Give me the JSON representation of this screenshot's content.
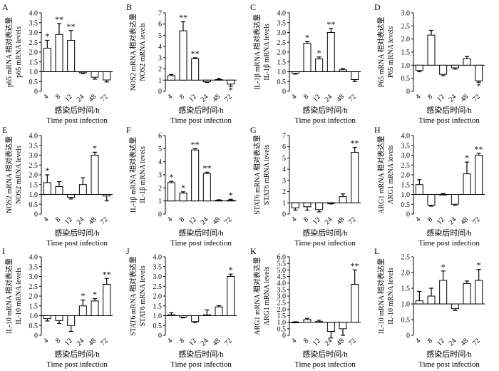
{
  "figure": {
    "xlabel_cn": "感染后时间/h",
    "xlabel_en": "Time post infection"
  },
  "chart_data": [
    {
      "panel": "A",
      "type": "bar",
      "categories": [
        "4",
        "8",
        "12",
        "24",
        "48",
        "72"
      ],
      "values": [
        2.2,
        2.9,
        2.6,
        0.95,
        0.72,
        0.58
      ],
      "errors": [
        0.4,
        0.55,
        0.5,
        0.05,
        0.1,
        0.1
      ],
      "sig": [
        "*",
        "**",
        "**",
        "",
        "",
        ""
      ],
      "ylim": [
        0,
        4.0
      ],
      "yticks": [
        "0",
        "0.5",
        "1.0",
        "1.5",
        "2.0",
        "2.5",
        "3.0",
        "3.5",
        "4.0"
      ],
      "ylabel_cn": "p65 mRNA 相对表达量",
      "ylabel_en": "p65 mRNA levels"
    },
    {
      "panel": "B",
      "type": "bar",
      "categories": [
        "4",
        "8",
        "12",
        "24",
        "48",
        "72"
      ],
      "values": [
        1.4,
        5.4,
        2.9,
        0.85,
        1.05,
        0.65
      ],
      "errors": [
        0.1,
        0.8,
        0.1,
        0.05,
        0.1,
        0.2
      ],
      "sig": [
        "",
        "**",
        "**",
        "",
        "",
        "*"
      ],
      "ylim": [
        0,
        7
      ],
      "yticks": [
        "0",
        "1",
        "2",
        "3",
        "4",
        "5",
        "6",
        "7"
      ],
      "ylabel_cn": "NOS2 mRNA 相对表达量",
      "ylabel_en": "NOS2 mRNA levels"
    },
    {
      "panel": "C",
      "type": "bar",
      "categories": [
        "4",
        "8",
        "12",
        "24",
        "48",
        "72"
      ],
      "values": [
        0.92,
        2.45,
        1.65,
        3.0,
        1.1,
        0.6
      ],
      "errors": [
        0.04,
        0.08,
        0.1,
        0.2,
        0.06,
        0.1
      ],
      "sig": [
        "",
        "*",
        "*",
        "**",
        "",
        ""
      ],
      "ylim": [
        0,
        4.0
      ],
      "yticks": [
        "0",
        "0.5",
        "1.0",
        "1.5",
        "2.0",
        "2.5",
        "3.0",
        "3.5",
        "4.0"
      ],
      "ylabel_cn": "IL-1β mRNA 相对表达量",
      "ylabel_en": "IL-1β mRNA levels"
    },
    {
      "panel": "D",
      "type": "bar",
      "categories": [
        "4",
        "8",
        "12",
        "24",
        "48",
        "72"
      ],
      "values": [
        0.8,
        2.15,
        0.65,
        0.9,
        1.25,
        0.4
      ],
      "errors": [
        0.05,
        0.18,
        0.05,
        0.05,
        0.08,
        0.05
      ],
      "sig": [
        "",
        "",
        "",
        "",
        "",
        "*"
      ],
      "ylim": [
        0,
        3.0
      ],
      "yticks": [
        "0",
        "0.5",
        "1.0",
        "1.5",
        "2.0",
        "2.5",
        "3.0"
      ],
      "ylabel_cn": "P65 mRNA 相对表达量",
      "ylabel_en": "P65 mRNA levels"
    },
    {
      "panel": "E",
      "type": "bar",
      "categories": [
        "4",
        "8",
        "12",
        "24",
        "48",
        "72"
      ],
      "values": [
        1.6,
        1.4,
        0.85,
        1.5,
        3.0,
        0.92
      ],
      "errors": [
        0.4,
        0.25,
        0.08,
        0.35,
        0.15,
        0.25
      ],
      "sig": [
        "*",
        "",
        "",
        "",
        "*",
        ""
      ],
      "ylim": [
        0,
        4.0
      ],
      "yticks": [
        "0",
        "0.5",
        "1.0",
        "1.5",
        "2.0",
        "2.5",
        "3.0",
        "3.5",
        "4.0"
      ],
      "ylabel_cn": "NOS2 mRNA 相对表达量",
      "ylabel_en": "NOS2 mRNA levels"
    },
    {
      "panel": "F",
      "type": "bar",
      "categories": [
        "4",
        "8",
        "12",
        "24",
        "48",
        "72"
      ],
      "values": [
        2.4,
        1.6,
        4.9,
        3.1,
        1.05,
        1.05
      ],
      "errors": [
        0.1,
        0.1,
        0.1,
        0.1,
        0.04,
        0.08
      ],
      "sig": [
        "*",
        "*",
        "**",
        "**",
        "",
        "*"
      ],
      "ylim": [
        0,
        6
      ],
      "yticks": [
        "0",
        "1",
        "2",
        "3",
        "4",
        "5",
        "6"
      ],
      "ylabel_cn": "IL-1β mRNA 相对表达量",
      "ylabel_en": "IL-1β mRNA levels"
    },
    {
      "panel": "G",
      "type": "bar",
      "categories": [
        "4",
        "8",
        "12",
        "24",
        "48",
        "72"
      ],
      "values": [
        0.55,
        0.65,
        0.4,
        0.95,
        1.55,
        5.5
      ],
      "errors": [
        0.2,
        0.3,
        0.2,
        0.05,
        0.25,
        0.45
      ],
      "sig": [
        "",
        "",
        "",
        "",
        "",
        "**"
      ],
      "ylim": [
        0,
        7
      ],
      "yticks": [
        "0",
        "1",
        "2",
        "3",
        "4",
        "5",
        "6",
        "7"
      ],
      "ylabel_cn": "STAT6 mRNA 相对表达量",
      "ylabel_en": "STAT6 mRNA levels"
    },
    {
      "panel": "H",
      "type": "bar",
      "categories": [
        "4",
        "8",
        "12",
        "24",
        "48",
        "72"
      ],
      "values": [
        1.5,
        0.45,
        1.0,
        0.5,
        2.05,
        3.0
      ],
      "errors": [
        0.25,
        0.05,
        0.04,
        0.05,
        0.6,
        0.1
      ],
      "sig": [
        "",
        "",
        "",
        "",
        "*",
        "**"
      ],
      "ylim": [
        0,
        4.0
      ],
      "yticks": [
        "0",
        "0.5",
        "1.0",
        "1.5",
        "2.0",
        "2.5",
        "3.0",
        "3.5",
        "4.0"
      ],
      "ylabel_cn": "ARG1 mRNA 相对表达量",
      "ylabel_en": "ARG1 mRNA levels"
    },
    {
      "panel": "I",
      "type": "bar",
      "categories": [
        "4",
        "8",
        "12",
        "24",
        "48",
        "72"
      ],
      "values": [
        0.85,
        0.75,
        0.5,
        1.5,
        1.75,
        2.6
      ],
      "errors": [
        0.12,
        0.15,
        0.3,
        0.3,
        0.12,
        0.3
      ],
      "sig": [
        "",
        "",
        "",
        "*",
        "*",
        "**"
      ],
      "ylim": [
        0,
        4.0
      ],
      "yticks": [
        "0",
        "0.5",
        "1.0",
        "1.5",
        "2.0",
        "2.5",
        "3.0",
        "3.5",
        "4.0"
      ],
      "ylabel_cn": "IL-10 mRNA 相对表达量",
      "ylabel_en": "IL-10 mRNA levels"
    },
    {
      "panel": "J",
      "type": "bar",
      "categories": [
        "4",
        "8",
        "12",
        "24",
        "48",
        "72"
      ],
      "values": [
        1.05,
        0.93,
        0.7,
        1.05,
        1.45,
        3.0
      ],
      "errors": [
        0.1,
        0.04,
        0.05,
        0.25,
        0.06,
        0.12
      ],
      "sig": [
        "",
        "",
        "",
        "",
        "",
        "*"
      ],
      "ylim": [
        0,
        4.0
      ],
      "yticks": [
        "0",
        "0.5",
        "1.0",
        "1.5",
        "2.0",
        "2.5",
        "3.0",
        "3.5",
        "4.0"
      ],
      "ylabel_cn": "STAT6 mRNA 相对表达量",
      "ylabel_en": "STAT6 mRNA levels"
    },
    {
      "panel": "K",
      "type": "bar",
      "categories": [
        "4",
        "8",
        "12",
        "24",
        "48",
        "72"
      ],
      "values": [
        1.0,
        1.2,
        1.05,
        0.3,
        0.5,
        3.9
      ],
      "errors": [
        0.04,
        0.1,
        0.1,
        0.5,
        0.5,
        1.1
      ],
      "sig": [
        "",
        "",
        "",
        "",
        "",
        "**"
      ],
      "ylim": [
        0,
        6.0
      ],
      "yticks": [
        "0",
        "0.5",
        "1.0",
        "1.5",
        "2.0",
        "2.5",
        "3.0",
        "3.5",
        "4.0",
        "4.5",
        "5.0",
        "5.5",
        "6.0"
      ],
      "ylabel_cn": "ARG1 mRNA 相对表达量",
      "ylabel_en": "ARG1 mRNA levels"
    },
    {
      "panel": "L",
      "type": "bar",
      "categories": [
        "4",
        "8",
        "12",
        "24",
        "48",
        "72"
      ],
      "values": [
        1.1,
        1.25,
        1.75,
        0.85,
        1.65,
        1.75
      ],
      "errors": [
        0.3,
        0.25,
        0.3,
        0.06,
        0.08,
        0.35
      ],
      "sig": [
        "",
        "",
        "*",
        "",
        "",
        "*"
      ],
      "ylim": [
        0,
        2.5
      ],
      "yticks": [
        "0",
        "0.5",
        "1.0",
        "1.5",
        "2.0",
        "2.5"
      ],
      "ylabel_cn": "IL-10 mRNA 相对表达量",
      "ylabel_en": "IL-10 mRNA levels"
    }
  ]
}
